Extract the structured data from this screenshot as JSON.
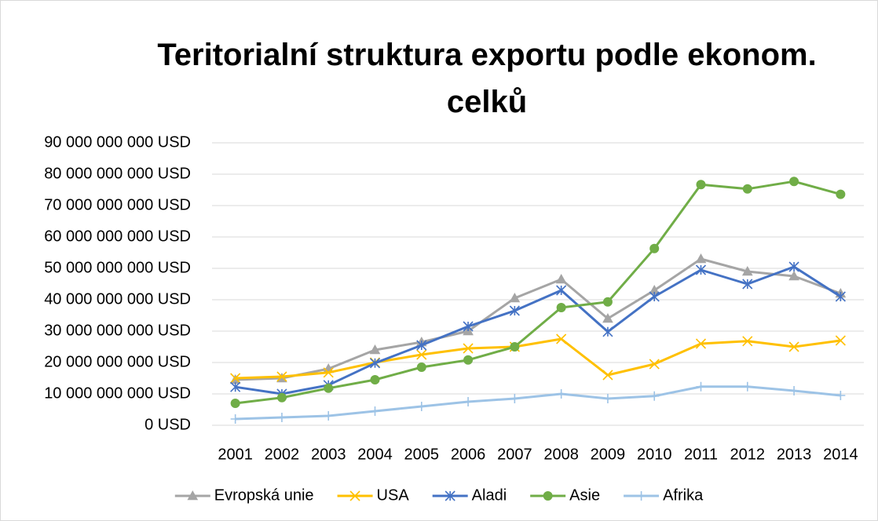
{
  "chart_data": {
    "type": "line",
    "title": "Teritorialní struktura exportu podle ekonom. celků",
    "categories": [
      "2001",
      "2002",
      "2003",
      "2004",
      "2005",
      "2006",
      "2007",
      "2008",
      "2009",
      "2010",
      "2011",
      "2012",
      "2013",
      "2014"
    ],
    "ylim": [
      0,
      90000000000
    ],
    "yticks": [
      {
        "value": 0,
        "label": "0 USD"
      },
      {
        "value": 10000000000,
        "label": "10 000 000 000 USD"
      },
      {
        "value": 20000000000,
        "label": "20 000 000 000 USD"
      },
      {
        "value": 30000000000,
        "label": "30 000 000 000 USD"
      },
      {
        "value": 40000000000,
        "label": "40 000 000 000 USD"
      },
      {
        "value": 50000000000,
        "label": "50 000 000 000 USD"
      },
      {
        "value": 60000000000,
        "label": "60 000 000 000 USD"
      },
      {
        "value": 70000000000,
        "label": "70 000 000 000 USD"
      },
      {
        "value": 80000000000,
        "label": "80 000 000 000 USD"
      },
      {
        "value": 90000000000,
        "label": "90 000 000 000 USD"
      }
    ],
    "grid": true,
    "legend": "bottom",
    "series": [
      {
        "name": "Evropská unie",
        "color": "#a5a5a5",
        "marker": "triangle",
        "values": [
          14500000000,
          15000000000,
          18000000000,
          24000000000,
          26500000000,
          30000000000,
          40500000000,
          46500000000,
          34000000000,
          43000000000,
          53000000000,
          49000000000,
          47500000000,
          42000000000
        ]
      },
      {
        "name": "USA",
        "color": "#ffc000",
        "marker": "x",
        "values": [
          15000000000,
          15500000000,
          16800000000,
          20000000000,
          22500000000,
          24500000000,
          25000000000,
          27500000000,
          16000000000,
          19500000000,
          26000000000,
          26800000000,
          25000000000,
          27000000000
        ]
      },
      {
        "name": "Aladi",
        "color": "#4472c4",
        "marker": "star",
        "values": [
          12200000000,
          10000000000,
          12800000000,
          19800000000,
          25500000000,
          31500000000,
          36500000000,
          43000000000,
          29800000000,
          41000000000,
          49500000000,
          45000000000,
          50500000000,
          41000000000
        ]
      },
      {
        "name": "Asie",
        "color": "#70ad47",
        "marker": "circle",
        "values": [
          7000000000,
          8800000000,
          11800000000,
          14500000000,
          18500000000,
          20800000000,
          25000000000,
          37500000000,
          39300000000,
          56300000000,
          76700000000,
          75300000000,
          77700000000,
          73600000000
        ]
      },
      {
        "name": "Afrika",
        "color": "#9dc3e6",
        "marker": "plus",
        "values": [
          2000000000,
          2500000000,
          3000000000,
          4500000000,
          6000000000,
          7500000000,
          8500000000,
          10000000000,
          8500000000,
          9300000000,
          12300000000,
          12300000000,
          11000000000,
          9500000000
        ]
      }
    ]
  }
}
